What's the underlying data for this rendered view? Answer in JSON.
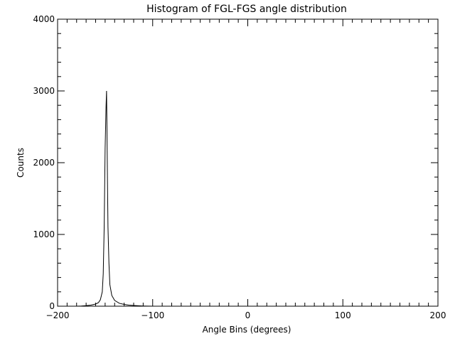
{
  "chart_data": {
    "type": "line",
    "title": "Histogram of FGL-FGS angle distribution",
    "xlabel": "Angle Bins (degrees)",
    "ylabel": "Counts",
    "xlim": [
      -200,
      200
    ],
    "ylim": [
      0,
      4000
    ],
    "x_ticks": [
      -200,
      -100,
      0,
      100,
      200
    ],
    "y_ticks": [
      0,
      1000,
      2000,
      3000,
      4000
    ],
    "grid": false,
    "series": [
      {
        "values": [
          {
            "x": -200,
            "y": 0
          },
          {
            "x": -180,
            "y": 0
          },
          {
            "x": -175,
            "y": 3
          },
          {
            "x": -170,
            "y": 8
          },
          {
            "x": -165,
            "y": 15
          },
          {
            "x": -160,
            "y": 30
          },
          {
            "x": -157,
            "y": 50
          },
          {
            "x": -155,
            "y": 90
          },
          {
            "x": -153,
            "y": 200
          },
          {
            "x": -152,
            "y": 450
          },
          {
            "x": -151,
            "y": 1100
          },
          {
            "x": -150,
            "y": 2200
          },
          {
            "x": -149.5,
            "y": 2500
          },
          {
            "x": -149,
            "y": 2800
          },
          {
            "x": -148.5,
            "y": 3000
          },
          {
            "x": -148,
            "y": 2400
          },
          {
            "x": -147.5,
            "y": 1700
          },
          {
            "x": -147,
            "y": 1100
          },
          {
            "x": -146,
            "y": 600
          },
          {
            "x": -145,
            "y": 300
          },
          {
            "x": -143,
            "y": 150
          },
          {
            "x": -140,
            "y": 80
          },
          {
            "x": -135,
            "y": 40
          },
          {
            "x": -130,
            "y": 25
          },
          {
            "x": -125,
            "y": 15
          },
          {
            "x": -120,
            "y": 10
          },
          {
            "x": -115,
            "y": 6
          },
          {
            "x": -110,
            "y": 3
          },
          {
            "x": -105,
            "y": 1
          },
          {
            "x": -100,
            "y": 0
          },
          {
            "x": 200,
            "y": 0
          }
        ]
      }
    ]
  }
}
